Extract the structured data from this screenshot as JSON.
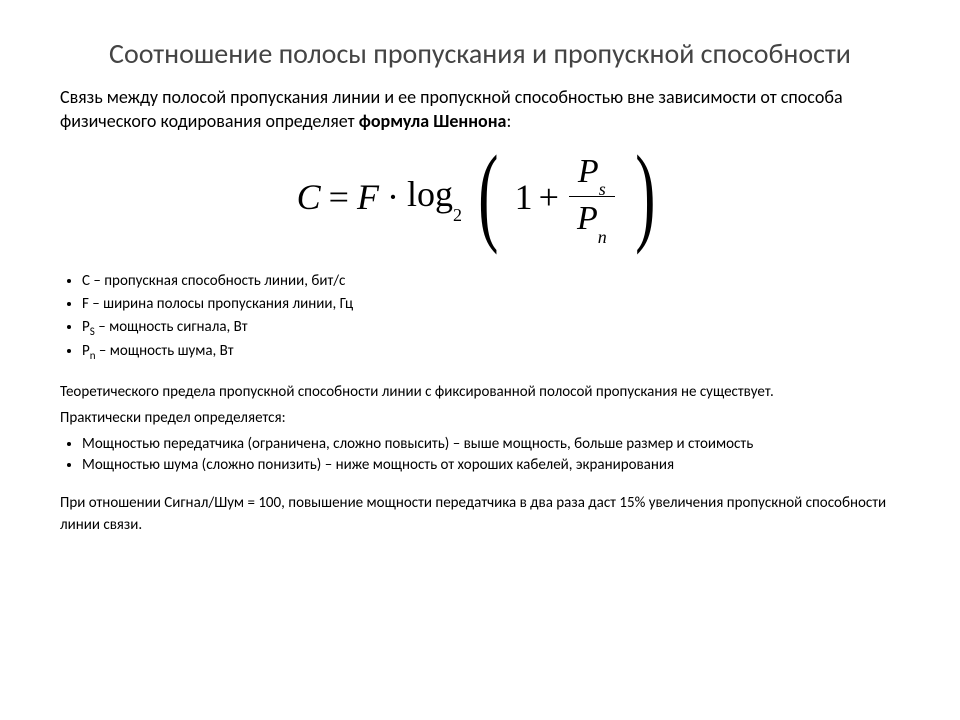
{
  "title": "Соотношение полосы пропускания и пропускной способности",
  "intro_part1": "Связь между полосой пропускания линии и ее пропускной способностью вне зависимости от способа физического кодирования определяет ",
  "intro_bold": "формула Шеннона",
  "intro_colon": ":",
  "formula": {
    "C": "C",
    "eq": "=",
    "F": "F",
    "dot": "·",
    "log": "log",
    "logbase": "2",
    "one": "1",
    "plus": "+",
    "Ps": "P",
    "Ps_sub": "s",
    "Pn": "P",
    "Pn_sub": "n"
  },
  "defs": [
    "C – пропускная способность линии, бит/с",
    "F – ширина полосы пропускания линии, Гц",
    "P<sub>s</sub> – мощность сигнала, Вт",
    "P<sub>n</sub> – мощность шума, Вт"
  ],
  "def0": "C – пропускная способность линии, бит/с",
  "def1": "F – ширина полосы пропускания линии, Гц",
  "def2_pre": "P",
  "def2_sub": "S",
  "def2_post": " – мощность сигнала, Вт",
  "def3_pre": "P",
  "def3_sub": "n",
  "def3_post": " – мощность шума, Вт",
  "para1": "Теоретического предела пропускной способности линии с фиксированной полосой пропускания не существует.",
  "para2": "Практически предел определяется:",
  "bul2": [
    "Мощностью передатчика (ограничена, сложно повысить) – выше мощность, больше размер и стоимость",
    "Мощностью шума (сложно понизить) – ниже мощность от хороших кабелей, экранирования"
  ],
  "para3": "При отношении Сигнал/Шум = 100, повышение мощности передатчика в два раза даст 15% увеличения пропускной способности линии связи."
}
